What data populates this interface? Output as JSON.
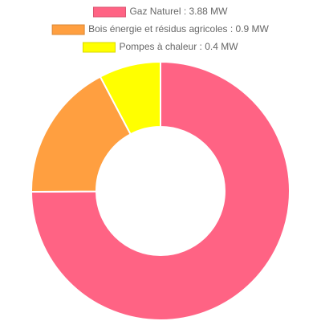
{
  "chart_data": {
    "type": "doughnut",
    "categories": [
      "Gaz Naturel : 3.88 MW",
      "Bois énergie et résidus agricoles : 0.9 MW",
      "Pompes à chaleur : 0.4 MW"
    ],
    "values": [
      3.88,
      0.9,
      0.4
    ],
    "colors": [
      "#ff6384",
      "#ff9f40",
      "#ffff00"
    ],
    "legend": "top"
  }
}
